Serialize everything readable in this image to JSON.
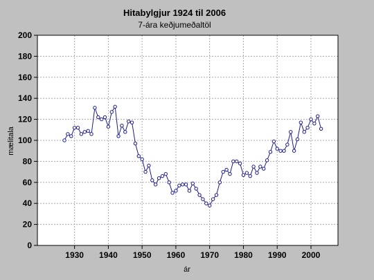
{
  "chart_data": {
    "type": "line",
    "title": "Hitabylgjur 1924 til 2006",
    "subtitle": "7-ára keðjumeðaltöl",
    "xlabel": "ár",
    "ylabel": "mælitala",
    "xlim": [
      1919,
      2008
    ],
    "ylim": [
      0,
      200
    ],
    "xticks": [
      1930,
      1940,
      1950,
      1960,
      1970,
      1980,
      1990,
      2000
    ],
    "yticks": [
      0,
      20,
      40,
      60,
      80,
      100,
      120,
      140,
      160,
      180,
      200
    ],
    "grid": true,
    "marker": "circle",
    "colors": {
      "line": "#1a1a8c",
      "grid": "#a8a8a8",
      "background": "#c0c0c0",
      "plot": "#ffffff"
    },
    "x": [
      1927,
      1928,
      1929,
      1930,
      1931,
      1932,
      1933,
      1934,
      1935,
      1936,
      1937,
      1938,
      1939,
      1940,
      1941,
      1942,
      1943,
      1944,
      1945,
      1946,
      1947,
      1948,
      1949,
      1950,
      1951,
      1952,
      1953,
      1954,
      1955,
      1956,
      1957,
      1958,
      1959,
      1960,
      1961,
      1962,
      1963,
      1964,
      1965,
      1966,
      1967,
      1968,
      1969,
      1970,
      1971,
      1972,
      1973,
      1974,
      1975,
      1976,
      1977,
      1978,
      1979,
      1980,
      1981,
      1982,
      1983,
      1984,
      1985,
      1986,
      1987,
      1988,
      1989,
      1990,
      1991,
      1992,
      1993,
      1994,
      1995,
      1996,
      1997,
      1998,
      1999,
      2000,
      2001,
      2002,
      2003
    ],
    "y": [
      100,
      106,
      104,
      112,
      112,
      106,
      108,
      109,
      106,
      131,
      122,
      120,
      122,
      113,
      127,
      132,
      104,
      114,
      108,
      118,
      117,
      97,
      85,
      82,
      70,
      76,
      62,
      58,
      64,
      66,
      68,
      60,
      50,
      52,
      57,
      58,
      58,
      52,
      59,
      54,
      48,
      44,
      40,
      38,
      44,
      48,
      60,
      70,
      72,
      68,
      80,
      80,
      78,
      67,
      69,
      66,
      75,
      69,
      75,
      73,
      81,
      89,
      99,
      92,
      90,
      90,
      96,
      108,
      90,
      101,
      117,
      108,
      112,
      120,
      116,
      123,
      111
    ]
  }
}
